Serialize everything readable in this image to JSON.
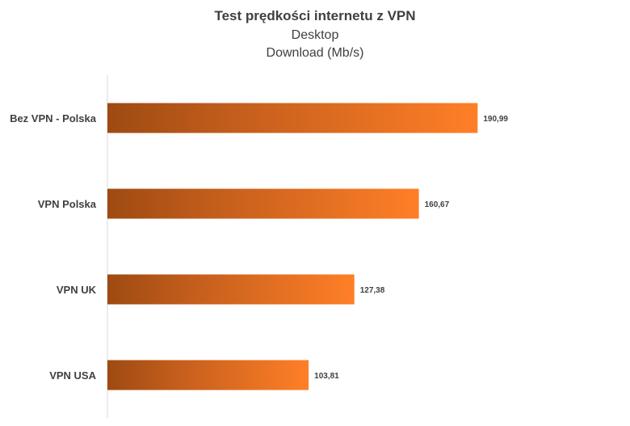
{
  "chart_data": {
    "type": "bar",
    "orientation": "horizontal",
    "title": "Test prędkości internetu z VPN",
    "subtitle": "Desktop",
    "subtitle2": "Download (Mb/s)",
    "categories": [
      "Bez VPN - Polska",
      "VPN Polska",
      "VPN UK",
      "VPN USA"
    ],
    "values": [
      190.99,
      160.67,
      127.38,
      103.81
    ],
    "value_labels": [
      "190,99",
      "160,67",
      "127,38",
      "103,81"
    ],
    "xlim": [
      0,
      250
    ],
    "grid": false,
    "legend": "none",
    "colors": {
      "bar_dark": "#9e4a12",
      "bar_light": "#ff7f27",
      "axis": "#d9d9d9",
      "text": "#404040"
    }
  }
}
